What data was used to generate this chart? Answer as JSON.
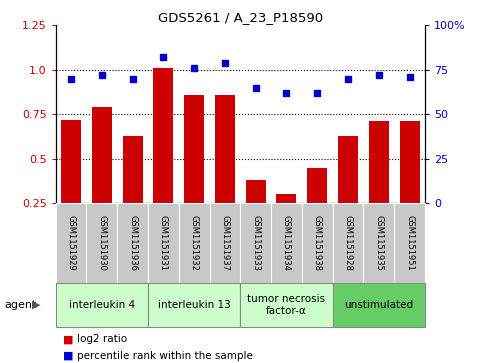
{
  "title": "GDS5261 / A_23_P18590",
  "samples": [
    "GSM1151929",
    "GSM1151930",
    "GSM1151936",
    "GSM1151931",
    "GSM1151932",
    "GSM1151937",
    "GSM1151933",
    "GSM1151934",
    "GSM1151938",
    "GSM1151928",
    "GSM1151935",
    "GSM1151951"
  ],
  "log2_ratio": [
    0.72,
    0.79,
    0.63,
    1.01,
    0.86,
    0.86,
    0.38,
    0.3,
    0.45,
    0.63,
    0.71,
    0.71
  ],
  "percentile_rank": [
    70,
    72,
    70,
    82,
    76,
    79,
    65,
    62,
    62,
    70,
    72,
    71
  ],
  "ylim_left": [
    0.25,
    1.25
  ],
  "ylim_right": [
    0,
    100
  ],
  "yticks_left": [
    0.25,
    0.5,
    0.75,
    1.0,
    1.25
  ],
  "yticks_right": [
    0,
    25,
    50,
    75,
    100
  ],
  "ytick_labels_right": [
    "0",
    "25",
    "50",
    "75",
    "100%"
  ],
  "bar_color": "#cc0000",
  "dot_color": "#0000cc",
  "agents": [
    {
      "label": "interleukin 4",
      "start": 0,
      "end": 3,
      "color": "#ccffcc"
    },
    {
      "label": "interleukin 13",
      "start": 3,
      "end": 6,
      "color": "#ccffcc"
    },
    {
      "label": "tumor necrosis\nfactor-α",
      "start": 6,
      "end": 9,
      "color": "#ccffcc"
    },
    {
      "label": "unstimulated",
      "start": 9,
      "end": 12,
      "color": "#66cc66"
    }
  ],
  "legend_bar_label": "log2 ratio",
  "legend_dot_label": "percentile rank within the sample",
  "agent_label": "agent",
  "sample_box_color": "#c8c8c8",
  "agent_box_border": "#888888"
}
